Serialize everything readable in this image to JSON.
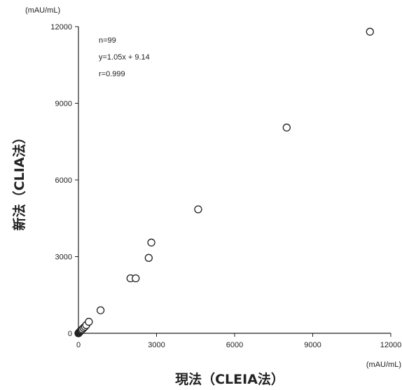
{
  "chart_data": {
    "type": "scatter",
    "xlabel": "現法（CLEIA法）",
    "ylabel": "新法（CLIA法）",
    "x_unit": "(mAU/mL)",
    "y_unit": "(mAU/mL)",
    "xlim": [
      0,
      12000
    ],
    "ylim": [
      0,
      12000
    ],
    "xticks": [
      "0",
      "3000",
      "6000",
      "9000",
      "12000"
    ],
    "yticks": [
      "0",
      "3000",
      "6000",
      "9000",
      "12000"
    ],
    "grid": false,
    "annotations": [
      "n=99",
      "y=1.05x + 9.14",
      "r=0.999"
    ],
    "series": [
      {
        "marker": "open-circle",
        "x": [
          0,
          10,
          20,
          30,
          40,
          60,
          80,
          100,
          120,
          150,
          200,
          250,
          300,
          400,
          850,
          2000,
          2200,
          2700,
          2800,
          4600,
          8000,
          11200
        ],
        "y": [
          0,
          15,
          25,
          35,
          45,
          70,
          90,
          110,
          130,
          160,
          210,
          260,
          320,
          450,
          900,
          2150,
          2150,
          2950,
          3550,
          4850,
          8050,
          11800
        ]
      }
    ]
  }
}
